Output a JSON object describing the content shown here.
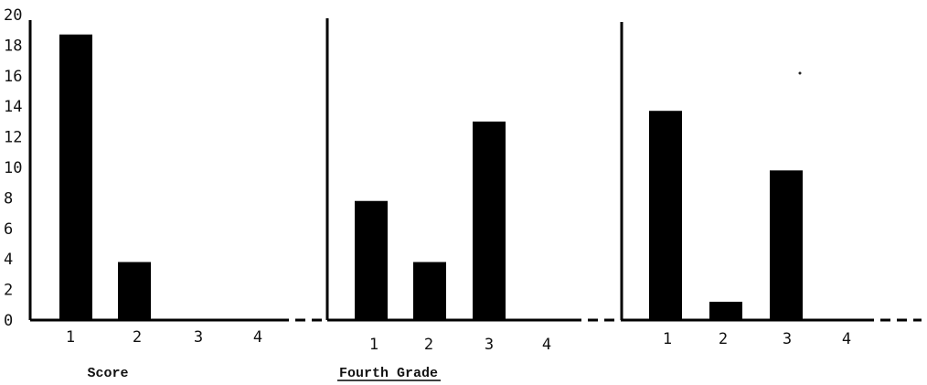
{
  "chart_data": [
    {
      "type": "bar",
      "categories": [
        "1",
        "2",
        "3",
        "4"
      ],
      "values": [
        18.7,
        3.8,
        0,
        0
      ],
      "ylim": [
        0,
        20
      ],
      "yticks": [
        "0",
        "2",
        "4",
        "6",
        "8",
        "10",
        "12",
        "14",
        "16",
        "18",
        "20"
      ],
      "xlabel": "Score",
      "bar_color": "#000000"
    },
    {
      "type": "bar",
      "categories": [
        "1",
        "2",
        "3",
        "4"
      ],
      "values": [
        7.8,
        3.8,
        13,
        0
      ],
      "ylim": [
        0,
        20
      ],
      "title": "Fourth Grade",
      "bar_color": "#000000"
    },
    {
      "type": "bar",
      "categories": [
        "1",
        "2",
        "3",
        "4"
      ],
      "values": [
        13.7,
        1.2,
        9.8,
        0
      ],
      "ylim": [
        0,
        20
      ],
      "bar_color": "#000000"
    }
  ]
}
